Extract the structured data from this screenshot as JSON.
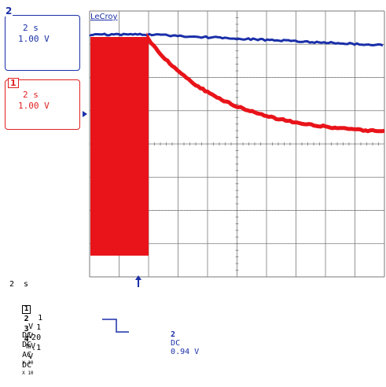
{
  "brand": "LeCroy",
  "trace2_box": {
    "number": "2",
    "timebase": "2 s",
    "volts": "1.00 V",
    "color": "#1a2fa8"
  },
  "trace1_box": {
    "number": "1",
    "timebase": "2 s",
    "volts": "1.00 V",
    "color": "#e02020"
  },
  "timebase": "2  s",
  "channels": [
    {
      "number": "1",
      "volts": "1",
      "unit": "V",
      "coupling": "DC",
      "extra": ""
    },
    {
      "number": "2",
      "volts": "1",
      "unit": "V",
      "coupling": "DC",
      "extra": ""
    },
    {
      "number": "3",
      "volts": "20",
      "unit": "mV",
      "coupling": "AC",
      "extra": "X 10"
    },
    {
      "number": "4",
      "volts": ".1",
      "unit": "V",
      "coupling": "DC",
      "extra": "X 10"
    }
  ],
  "trigger": {
    "channel": "2",
    "coupling": "DC",
    "level": "0.94 V"
  },
  "colors": {
    "blue_trace": "#1a2fa8",
    "red_trace": "#e8141a",
    "grid": "#7a7a7a"
  }
}
